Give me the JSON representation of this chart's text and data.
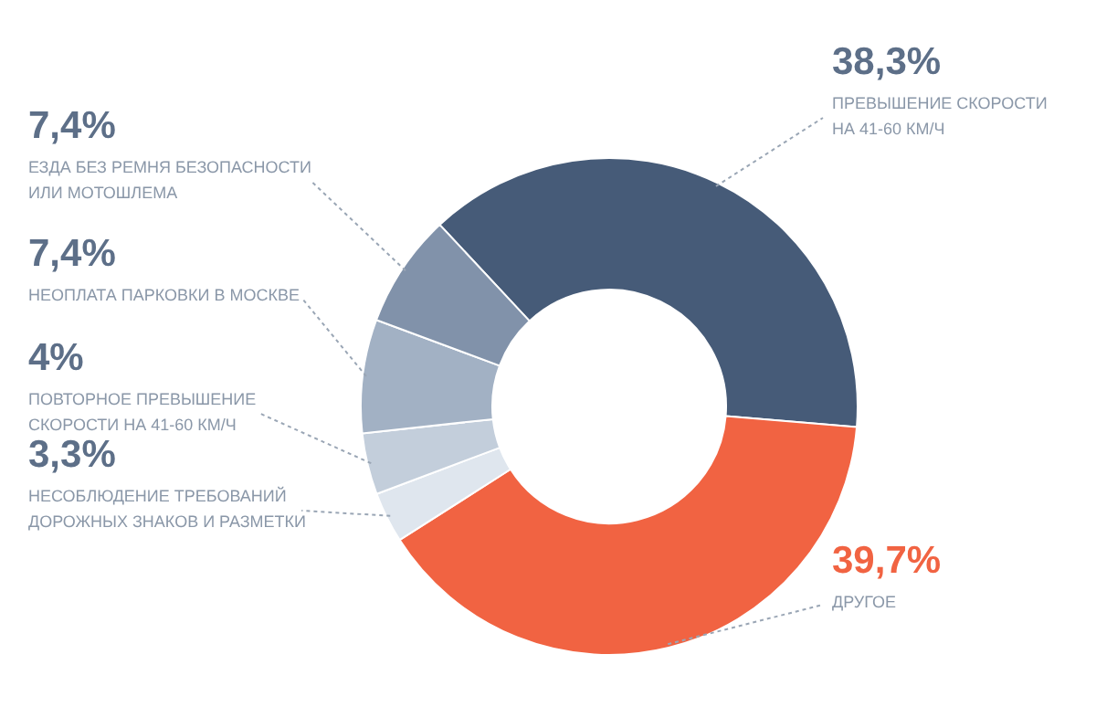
{
  "chart_data": {
    "type": "donut",
    "categories": [
      "ПРЕВЫШЕНИЕ СКОРОСТИ\nНА 41-60 КМ/Ч",
      "ДРУГОЕ",
      "НЕСОБЛЮДЕНИЕ ТРЕБОВАНИЙ\nДОРОЖНЫХ ЗНАКОВ И РАЗМЕТКИ",
      "ПОВТОРНОЕ ПРЕВЫШЕНИЕ\nСКОРОСТИ НА 41-60 КМ/Ч",
      "НЕОПЛАТА ПАРКОВКИ В МОСКВЕ",
      "ЕЗДА БЕЗ РЕМНЯ БЕЗОПАСНОСТИ\nИЛИ МОТОШЛЕМА"
    ],
    "values": [
      38.3,
      39.7,
      3.3,
      4,
      7.4,
      7.4
    ],
    "value_labels": [
      "38,3%",
      "39,7%",
      "3,3%",
      "4%",
      "7,4%",
      "7,4%"
    ],
    "colors": [
      "#465b78",
      "#f16342",
      "#dfe6ee",
      "#c3cedb",
      "#a2b1c4",
      "#8192aa"
    ]
  }
}
